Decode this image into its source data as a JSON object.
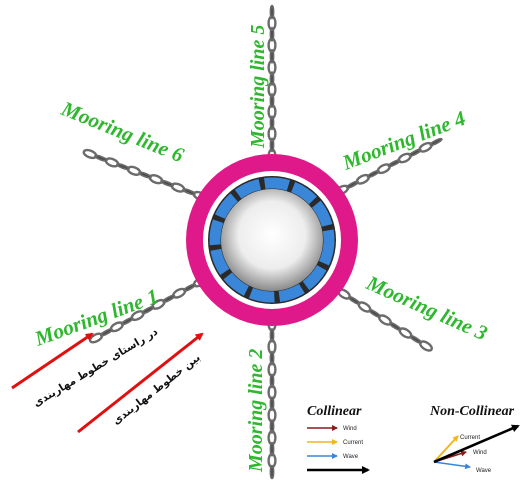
{
  "mooring_lines": [
    {
      "id": 1,
      "label": "Mooring line 1"
    },
    {
      "id": 2,
      "label": "Mooring line 2"
    },
    {
      "id": 3,
      "label": "Mooring line 3"
    },
    {
      "id": 4,
      "label": "Mooring line 4"
    },
    {
      "id": 5,
      "label": "Mooring line 5"
    },
    {
      "id": 6,
      "label": "Mooring line 6"
    }
  ],
  "direction_labels": {
    "along_lines": "در راستای خطوط مهاربندی",
    "between_lines": "بین خطوط مهاربندی"
  },
  "legend": {
    "collinear": {
      "title": "Collinear",
      "items": [
        {
          "label": "Wind",
          "color": "#8b1a1a"
        },
        {
          "label": "Current",
          "color": "#f2b51f"
        },
        {
          "label": "Wave",
          "color": "#3a86d8"
        }
      ]
    },
    "non_collinear": {
      "title": "Non-Collinear",
      "items": [
        {
          "label": "Current",
          "color": "#f2b51f"
        },
        {
          "label": "Wind",
          "color": "#8b1a1a"
        },
        {
          "label": "Wave",
          "color": "#3a86d8"
        }
      ]
    }
  },
  "colors": {
    "label_green": "#2fb82f",
    "ring_magenta": "#e0198a",
    "fender_blue": "#3a86d8",
    "direction_arrow_red": "#e01010",
    "chain_grey": "#6b6b6b"
  }
}
